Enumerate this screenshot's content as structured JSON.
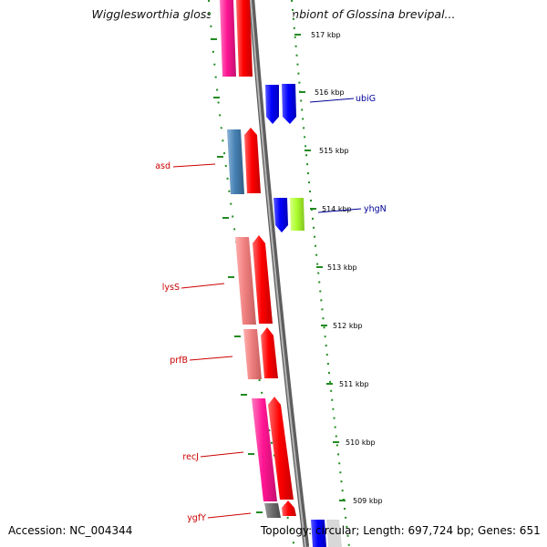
{
  "title": "Wigglesworthia glossinidia endosymbiont of Glossina brevipal...",
  "footer": {
    "accession": "Accession: NC_004344",
    "summary": "Topology: circular; Length: 697,724 bp; Genes: 651"
  },
  "ruler": [
    "517 kbp",
    "516 kbp",
    "515 kbp",
    "514 kbp",
    "513 kbp",
    "512 kbp",
    "511 kbp",
    "510 kbp",
    "509 kbp"
  ],
  "genes_reverse": [
    {
      "name": "asd",
      "color": "#cc0000"
    },
    {
      "name": "lysS",
      "color": "#cc0000"
    },
    {
      "name": "prfB",
      "color": "#cc0000"
    },
    {
      "name": "recJ",
      "color": "#cc0000"
    },
    {
      "name": "ygfY",
      "color": "#cc0000"
    }
  ],
  "genes_forward": [
    {
      "name": "ubiG",
      "color": "#000099"
    },
    {
      "name": "yhgN",
      "color": "#000099"
    }
  ],
  "colors": {
    "backbone": "#8a8a8a",
    "cds_reverse": "#ff0000",
    "cds_forward": "#0000ff",
    "cog_magenta": "#ff1493",
    "cog_steelblue": "#4682b4",
    "cog_salmon": "#f08080",
    "cog_lime": "#adff2f",
    "tick": "#228b22"
  }
}
